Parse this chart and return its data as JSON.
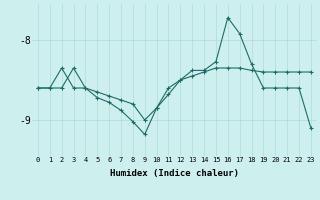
{
  "xlabel": "Humidex (Indice chaleur)",
  "background_color": "#cdf0ef",
  "line_color": "#1e6b65",
  "grid_color": "#aadddd",
  "x": [
    0,
    1,
    2,
    3,
    4,
    5,
    6,
    7,
    8,
    9,
    10,
    11,
    12,
    13,
    14,
    15,
    16,
    17,
    18,
    19,
    20,
    21,
    22,
    23
  ],
  "line1": [
    -8.6,
    -8.6,
    -8.35,
    -8.6,
    -8.6,
    -8.65,
    -8.7,
    -8.75,
    -8.8,
    -9.0,
    -8.85,
    -8.6,
    -8.5,
    -8.45,
    -8.4,
    -8.35,
    -8.35,
    -8.35,
    -8.38,
    -8.4,
    -8.4,
    -8.4,
    -8.4,
    -8.4
  ],
  "line2": [
    -8.6,
    -8.6,
    -8.6,
    -8.35,
    -8.6,
    -8.72,
    -8.78,
    -8.88,
    -9.02,
    -9.18,
    -8.85,
    -8.68,
    -8.5,
    -8.38,
    -8.38,
    -8.27,
    -7.72,
    -7.92,
    -8.3,
    -8.6,
    -8.6,
    -8.6,
    -8.6,
    -9.1
  ],
  "ylim": [
    -9.45,
    -7.55
  ],
  "yticks": [
    -9.0,
    -8.0
  ],
  "ytick_labels": [
    "-9",
    "-8"
  ],
  "xlim": [
    -0.5,
    23.5
  ]
}
